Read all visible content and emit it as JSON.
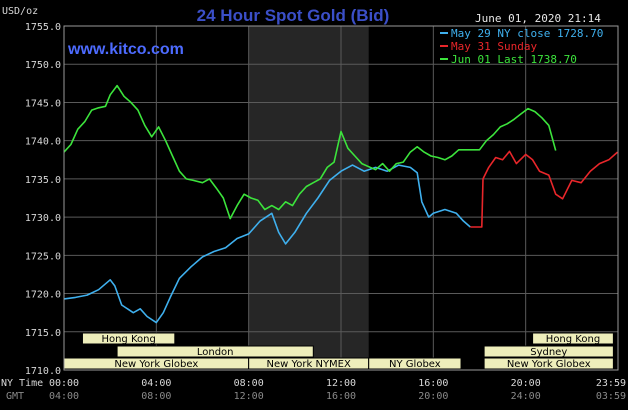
{
  "chart_data": {
    "type": "line",
    "title": "24 Hour Spot Gold (Bid)",
    "watermark": "www.kitco.com",
    "unit": "USD/oz",
    "date_label": "June 01, 2020 21:14",
    "ylim": [
      1710,
      1755
    ],
    "y_ticks": [
      "1755.0",
      "1750.0",
      "1745.0",
      "1740.0",
      "1735.0",
      "1730.0",
      "1725.0",
      "1720.0",
      "1715.0",
      "1710.0"
    ],
    "x_axis_label": "NY Time",
    "x_ticks": [
      "00:00",
      "04:00",
      "08:00",
      "12:00",
      "16:00",
      "20:00",
      "23:59"
    ],
    "gmt_label": "GMT",
    "gmt_ticks": [
      "04:00",
      "08:00",
      "12:00",
      "16:00",
      "20:00",
      "24:00",
      "03:59"
    ],
    "grid": true,
    "legend_position": "top-right",
    "colors": {
      "blue": "#3fb0ee",
      "red": "#e8262a",
      "green": "#3ce43c",
      "shade": "#262626"
    },
    "shaded_hours": [
      8,
      13.2
    ],
    "series": [
      {
        "name": "May 29 NY close 1728.70",
        "color": "#3fb0ee",
        "x": [
          0,
          0.5,
          1.0,
          1.5,
          2.0,
          2.2,
          2.5,
          3.0,
          3.3,
          3.6,
          4.0,
          4.3,
          4.6,
          5.0,
          5.5,
          6.0,
          6.5,
          7.0,
          7.5,
          8.0,
          8.5,
          9.0,
          9.3,
          9.6,
          10.0,
          10.5,
          11.0,
          11.5,
          12.0,
          12.5,
          13.0,
          13.5,
          14.0,
          14.5,
          15.0,
          15.3,
          15.5,
          15.8,
          16.0,
          16.5,
          17.0,
          17.3,
          17.6
        ],
        "y": [
          1719.3,
          1719.5,
          1719.8,
          1720.5,
          1721.8,
          1721.0,
          1718.5,
          1717.5,
          1718.0,
          1717.0,
          1716.2,
          1717.5,
          1719.5,
          1722.0,
          1723.5,
          1724.8,
          1725.5,
          1726.0,
          1727.2,
          1727.8,
          1729.5,
          1730.5,
          1728.0,
          1726.5,
          1728.0,
          1730.5,
          1732.5,
          1734.8,
          1736.0,
          1736.8,
          1736.0,
          1736.5,
          1736.0,
          1736.8,
          1736.5,
          1735.8,
          1732.0,
          1730.0,
          1730.5,
          1731.0,
          1730.5,
          1729.5,
          1728.7
        ]
      },
      {
        "name": "May 31 Sunday",
        "color": "#e8262a",
        "x": [
          17.6,
          18.1,
          18.15,
          18.4,
          18.7,
          19.0,
          19.3,
          19.6,
          20.0,
          20.3,
          20.6,
          21.0,
          21.3,
          21.6,
          22.0,
          22.4,
          22.8,
          23.2,
          23.6,
          23.98
        ],
        "y": [
          1728.7,
          1728.7,
          1735.0,
          1736.5,
          1737.8,
          1737.5,
          1738.6,
          1737.0,
          1738.2,
          1737.5,
          1736.0,
          1735.5,
          1733.0,
          1732.4,
          1734.8,
          1734.5,
          1736.0,
          1737.0,
          1737.5,
          1738.5
        ]
      },
      {
        "name": "Jun 01 Last 1738.70",
        "color": "#3ce43c",
        "x": [
          0,
          0.3,
          0.6,
          0.9,
          1.2,
          1.5,
          1.8,
          2.0,
          2.3,
          2.6,
          2.9,
          3.2,
          3.5,
          3.8,
          4.1,
          4.4,
          4.7,
          5.0,
          5.3,
          5.6,
          6.0,
          6.3,
          6.6,
          6.9,
          7.2,
          7.5,
          7.8,
          8.1,
          8.4,
          8.7,
          9.0,
          9.3,
          9.6,
          9.9,
          10.2,
          10.5,
          10.8,
          11.1,
          11.4,
          11.7,
          12.0,
          12.3,
          12.6,
          12.9,
          13.2,
          13.5,
          13.8,
          14.1,
          14.4,
          14.7,
          15.0,
          15.3,
          15.6,
          15.9,
          16.2,
          16.5,
          16.8,
          17.1,
          17.4,
          17.7,
          18.0,
          18.3,
          18.6,
          18.9,
          19.2,
          19.5,
          19.8,
          20.1,
          20.4,
          20.7,
          21.0,
          21.3
        ],
        "y": [
          1738.5,
          1739.5,
          1741.5,
          1742.5,
          1744.0,
          1744.3,
          1744.5,
          1746.0,
          1747.2,
          1745.8,
          1745.0,
          1744.0,
          1742.0,
          1740.5,
          1741.8,
          1740.0,
          1738.0,
          1736.0,
          1735.0,
          1734.8,
          1734.5,
          1735.0,
          1733.8,
          1732.5,
          1729.8,
          1731.5,
          1733.0,
          1732.5,
          1732.2,
          1731.0,
          1731.5,
          1731.0,
          1732.0,
          1731.5,
          1733.0,
          1734.0,
          1734.5,
          1735.0,
          1736.5,
          1737.2,
          1741.2,
          1739.0,
          1738.0,
          1737.0,
          1736.6,
          1736.2,
          1737.0,
          1736.0,
          1737.0,
          1737.2,
          1738.5,
          1739.2,
          1738.5,
          1738.0,
          1737.8,
          1737.5,
          1738.0,
          1738.8,
          1738.8,
          1738.8,
          1738.8,
          1740.0,
          1740.8,
          1741.8,
          1742.2,
          1742.8,
          1743.5,
          1744.2,
          1743.8,
          1743.0,
          1742.0,
          1738.7
        ]
      }
    ],
    "sessions": [
      {
        "label": "Hong Kong",
        "row": 0,
        "start": 0.8,
        "end": 4.8
      },
      {
        "label": "Hong Kong",
        "row": 0,
        "start": 20.3,
        "end": 23.8
      },
      {
        "label": "London",
        "row": 1,
        "start": 2.3,
        "end": 10.8
      },
      {
        "label": "Sydney",
        "row": 1,
        "start": 18.2,
        "end": 23.8
      },
      {
        "label": "New York Globex",
        "row": 2,
        "start": 0,
        "end": 8.0
      },
      {
        "label": "New York NYMEX",
        "row": 2,
        "start": 8.0,
        "end": 13.2
      },
      {
        "label": "NY Globex",
        "row": 2,
        "start": 13.2,
        "end": 17.2
      },
      {
        "label": "New York Globex",
        "row": 2,
        "start": 18.2,
        "end": 23.8
      }
    ]
  }
}
